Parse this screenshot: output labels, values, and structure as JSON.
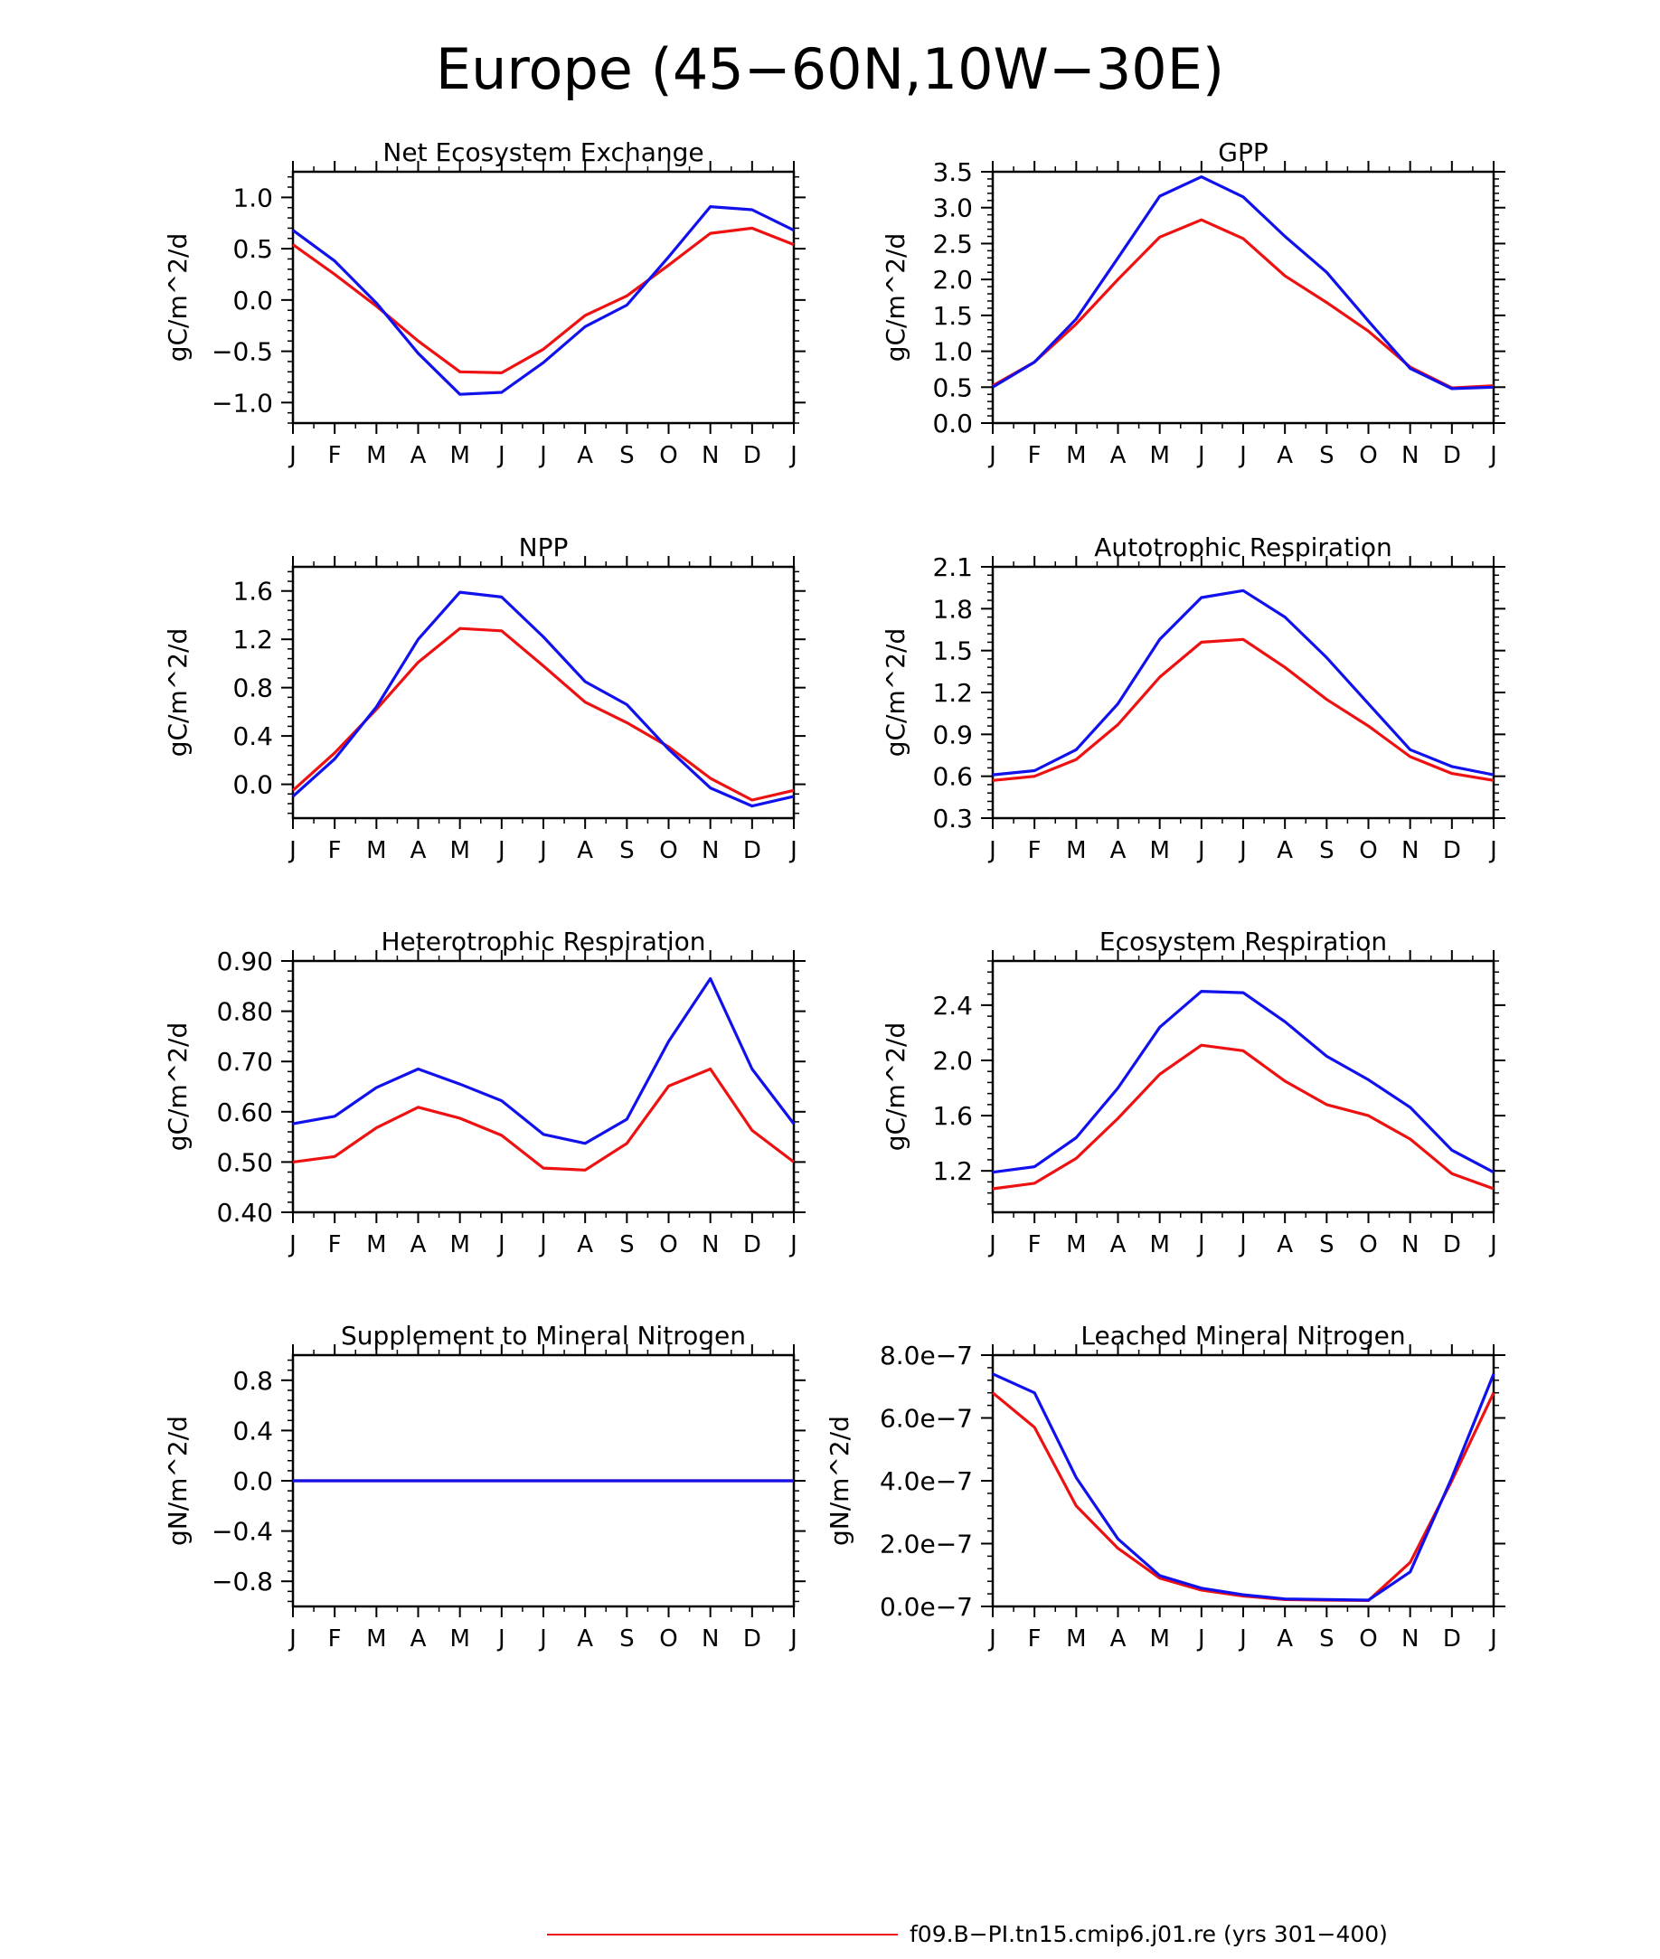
{
  "figure": {
    "title": "Europe (45−60N,10W−30E)",
    "months": [
      "J",
      "F",
      "M",
      "A",
      "M",
      "J",
      "J",
      "A",
      "S",
      "O",
      "N",
      "D",
      "J"
    ],
    "colors": {
      "red": "#ee1111",
      "blue": "#1111ee",
      "axis": "#000000"
    },
    "legend": [
      {
        "label": "f09.B−PI.tn15.cmip6.j01.re (yrs 301−400)",
        "color": "#ee1111"
      }
    ]
  },
  "chart_data": [
    {
      "type": "line",
      "title": "Net Ecosystem Exchange",
      "ylabel": "gC/m^2/d",
      "ylim": [
        -1.2,
        1.25
      ],
      "yticks": [
        -1.0,
        -0.5,
        0.0,
        0.5,
        1.0
      ],
      "ytick_labels": [
        "−1.0",
        "−0.5",
        "0.0",
        "0.5",
        "1.0"
      ],
      "x": [
        "J",
        "F",
        "M",
        "A",
        "M",
        "J",
        "J",
        "A",
        "S",
        "O",
        "N",
        "D",
        "J"
      ],
      "series": [
        {
          "color": "#ee1111",
          "values": [
            0.54,
            0.25,
            -0.06,
            -0.4,
            -0.7,
            -0.71,
            -0.48,
            -0.15,
            0.04,
            0.34,
            0.65,
            0.7,
            0.54
          ]
        },
        {
          "color": "#1111ee",
          "values": [
            0.68,
            0.38,
            -0.03,
            -0.52,
            -0.92,
            -0.9,
            -0.61,
            -0.26,
            -0.05,
            0.42,
            0.91,
            0.88,
            0.68
          ]
        }
      ]
    },
    {
      "type": "line",
      "title": "GPP",
      "ylabel": "gC/m^2/d",
      "ylim": [
        0.0,
        3.5
      ],
      "yticks": [
        0.0,
        0.5,
        1.0,
        1.5,
        2.0,
        2.5,
        3.0,
        3.5
      ],
      "ytick_labels": [
        "0.0",
        "0.5",
        "1.0",
        "1.5",
        "2.0",
        "2.5",
        "3.0",
        "3.5"
      ],
      "x": [
        "J",
        "F",
        "M",
        "A",
        "M",
        "J",
        "J",
        "A",
        "S",
        "O",
        "N",
        "D",
        "J"
      ],
      "series": [
        {
          "color": "#ee1111",
          "values": [
            0.52,
            0.85,
            1.38,
            2.0,
            2.59,
            2.83,
            2.57,
            2.05,
            1.68,
            1.28,
            0.78,
            0.49,
            0.52
          ]
        },
        {
          "color": "#1111ee",
          "values": [
            0.5,
            0.85,
            1.45,
            2.3,
            3.16,
            3.43,
            3.15,
            2.6,
            2.1,
            1.42,
            0.76,
            0.48,
            0.5
          ]
        }
      ]
    },
    {
      "type": "line",
      "title": "NPP",
      "ylabel": "gC/m^2/d",
      "ylim": [
        -0.28,
        1.8
      ],
      "yticks": [
        0.0,
        0.4,
        0.8,
        1.2,
        1.6
      ],
      "ytick_labels": [
        "0.0",
        "0.4",
        "0.8",
        "1.2",
        "1.6"
      ],
      "x": [
        "J",
        "F",
        "M",
        "A",
        "M",
        "J",
        "J",
        "A",
        "S",
        "O",
        "N",
        "D",
        "J"
      ],
      "series": [
        {
          "color": "#ee1111",
          "values": [
            -0.05,
            0.26,
            0.62,
            1.01,
            1.29,
            1.27,
            0.98,
            0.68,
            0.51,
            0.31,
            0.05,
            -0.13,
            -0.05
          ]
        },
        {
          "color": "#1111ee",
          "values": [
            -0.1,
            0.21,
            0.64,
            1.2,
            1.59,
            1.55,
            1.22,
            0.85,
            0.66,
            0.29,
            -0.03,
            -0.18,
            -0.1
          ]
        }
      ]
    },
    {
      "type": "line",
      "title": "Autotrophic Respiration",
      "ylabel": "gC/m^2/d",
      "ylim": [
        0.3,
        2.1
      ],
      "yticks": [
        0.3,
        0.6,
        0.9,
        1.2,
        1.5,
        1.8,
        2.1
      ],
      "ytick_labels": [
        "0.3",
        "0.6",
        "0.9",
        "1.2",
        "1.5",
        "1.8",
        "2.1"
      ],
      "x": [
        "J",
        "F",
        "M",
        "A",
        "M",
        "J",
        "J",
        "A",
        "S",
        "O",
        "N",
        "D",
        "J"
      ],
      "series": [
        {
          "color": "#ee1111",
          "values": [
            0.57,
            0.6,
            0.72,
            0.97,
            1.31,
            1.56,
            1.58,
            1.38,
            1.15,
            0.96,
            0.74,
            0.62,
            0.57
          ]
        },
        {
          "color": "#1111ee",
          "values": [
            0.61,
            0.64,
            0.79,
            1.12,
            1.58,
            1.88,
            1.93,
            1.74,
            1.45,
            1.12,
            0.79,
            0.67,
            0.61
          ]
        }
      ]
    },
    {
      "type": "line",
      "title": "Heterotrophic Respiration",
      "ylabel": "gC/m^2/d",
      "ylim": [
        0.4,
        0.9
      ],
      "yticks": [
        0.4,
        0.5,
        0.6,
        0.7,
        0.8,
        0.9
      ],
      "ytick_labels": [
        "0.40",
        "0.50",
        "0.60",
        "0.70",
        "0.80",
        "0.90"
      ],
      "x": [
        "J",
        "F",
        "M",
        "A",
        "M",
        "J",
        "J",
        "A",
        "S",
        "O",
        "N",
        "D",
        "J"
      ],
      "series": [
        {
          "color": "#ee1111",
          "values": [
            0.5,
            0.511,
            0.568,
            0.609,
            0.587,
            0.553,
            0.488,
            0.484,
            0.537,
            0.651,
            0.685,
            0.563,
            0.5
          ]
        },
        {
          "color": "#1111ee",
          "values": [
            0.576,
            0.591,
            0.648,
            0.685,
            0.655,
            0.622,
            0.555,
            0.537,
            0.585,
            0.74,
            0.865,
            0.685,
            0.576
          ]
        }
      ]
    },
    {
      "type": "line",
      "title": "Ecosystem Respiration",
      "ylabel": "gC/m^2/d",
      "ylim": [
        0.9,
        2.72
      ],
      "yticks": [
        1.2,
        1.6,
        2.0,
        2.4
      ],
      "ytick_labels": [
        "1.2",
        "1.6",
        "2.0",
        "2.4"
      ],
      "x": [
        "J",
        "F",
        "M",
        "A",
        "M",
        "J",
        "J",
        "A",
        "S",
        "O",
        "N",
        "D",
        "J"
      ],
      "series": [
        {
          "color": "#ee1111",
          "values": [
            1.07,
            1.11,
            1.29,
            1.58,
            1.9,
            2.11,
            2.07,
            1.85,
            1.68,
            1.6,
            1.43,
            1.18,
            1.07
          ]
        },
        {
          "color": "#1111ee",
          "values": [
            1.19,
            1.23,
            1.44,
            1.8,
            2.24,
            2.5,
            2.49,
            2.28,
            2.03,
            1.86,
            1.66,
            1.35,
            1.19
          ]
        }
      ]
    },
    {
      "type": "line",
      "title": "Supplement to Mineral Nitrogen",
      "ylabel": "gN/m^2/d",
      "ylim": [
        -1.0,
        1.0
      ],
      "yticks": [
        -0.8,
        -0.4,
        0.0,
        0.4,
        0.8
      ],
      "ytick_labels": [
        "−0.8",
        "−0.4",
        "0.0",
        "0.4",
        "0.8"
      ],
      "x": [
        "J",
        "F",
        "M",
        "A",
        "M",
        "J",
        "J",
        "A",
        "S",
        "O",
        "N",
        "D",
        "J"
      ],
      "series": [
        {
          "color": "#ee1111",
          "values": [
            0,
            0,
            0,
            0,
            0,
            0,
            0,
            0,
            0,
            0,
            0,
            0,
            0
          ]
        },
        {
          "color": "#1111ee",
          "values": [
            0,
            0,
            0,
            0,
            0,
            0,
            0,
            0,
            0,
            0,
            0,
            0,
            0
          ]
        }
      ]
    },
    {
      "type": "line",
      "title": "Leached Mineral Nitrogen",
      "ylabel": "gN/m^2/d",
      "ylim": [
        0.0,
        8e-07
      ],
      "yticks": [
        0.0,
        2e-07,
        4e-07,
        6e-07,
        8e-07
      ],
      "ytick_labels": [
        "0.0e−7",
        "2.0e−7",
        "4.0e−7",
        "6.0e−7",
        "8.0e−7"
      ],
      "x": [
        "J",
        "F",
        "M",
        "A",
        "M",
        "J",
        "J",
        "A",
        "S",
        "O",
        "N",
        "D",
        "J"
      ],
      "series": [
        {
          "color": "#ee1111",
          "values": [
            6.8e-07,
            5.7e-07,
            3.2e-07,
            1.85e-07,
            9e-08,
            5.2e-08,
            3.3e-08,
            2.2e-08,
            2e-08,
            1.9e-08,
            1.4e-07,
            4e-07,
            6.8e-07
          ]
        },
        {
          "color": "#1111ee",
          "values": [
            7.4e-07,
            6.8e-07,
            4.1e-07,
            2.15e-07,
            9.8e-08,
            5.8e-08,
            3.7e-08,
            2.4e-08,
            2.2e-08,
            2e-08,
            1.1e-07,
            4.1e-07,
            7.4e-07
          ]
        }
      ]
    }
  ]
}
